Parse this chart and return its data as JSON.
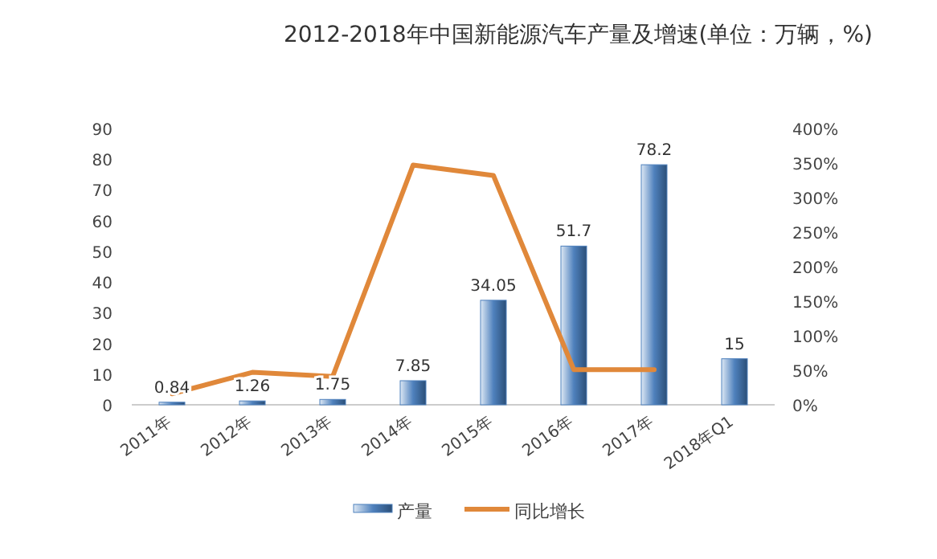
{
  "chart_data": {
    "type": "bar",
    "title": "2012-2018年中国新能源汽车产量及增速(单位：万辆，%)",
    "categories": [
      "2011年",
      "2012年",
      "2013年",
      "2014年",
      "2015年",
      "2016年",
      "2017年",
      "2018年Q1"
    ],
    "series": [
      {
        "name": "产量",
        "color": "#4f81bd",
        "values": [
          0.84,
          1.26,
          1.75,
          7.85,
          34.05,
          51.7,
          78.2,
          15
        ],
        "value_labels": [
          "0.84",
          "1.26",
          "1.75",
          "7.85",
          "34.05",
          "51.7",
          "78.2",
          "15"
        ]
      },
      {
        "name": "同比增长",
        "type": "line",
        "axis": "y2",
        "color": "#e0883a",
        "values": [
          16,
          47,
          41,
          347,
          332,
          51,
          51,
          null
        ]
      }
    ],
    "ylim": [
      0,
      90
    ],
    "yticks": [
      0,
      10,
      20,
      30,
      40,
      50,
      60,
      70,
      80,
      90
    ],
    "y2lim": [
      0,
      400
    ],
    "y2ticks": [
      {
        "value": 0,
        "label": "0%"
      },
      {
        "value": 50,
        "label": "50%"
      },
      {
        "value": 100,
        "label": "100%"
      },
      {
        "value": 150,
        "label": "150%"
      },
      {
        "value": 200,
        "label": "200%"
      },
      {
        "value": 250,
        "label": "250%"
      },
      {
        "value": 300,
        "label": "300%"
      },
      {
        "value": 350,
        "label": "350%"
      },
      {
        "value": 400,
        "label": "400%"
      }
    ],
    "grid": false,
    "legend": "bottom",
    "marker": "none",
    "line_style": "solid"
  }
}
